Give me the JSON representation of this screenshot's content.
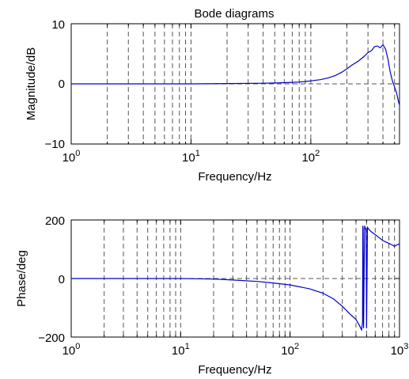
{
  "chart_data": [
    {
      "type": "line",
      "title": "Bode diagrams",
      "xlabel": "Frequency/Hz",
      "ylabel": "Magnitude/dB",
      "xscale": "log",
      "xlim": [
        1,
        550
      ],
      "ylim": [
        -10,
        10
      ],
      "xtick_labels": [
        {
          "base": "10",
          "exp": "0"
        },
        {
          "base": "10",
          "exp": "1"
        },
        {
          "base": "10",
          "exp": "2"
        }
      ],
      "ytick_labels": [
        "10",
        "0",
        "−10"
      ],
      "grid": "x-dashed",
      "zero_line": "dashed",
      "line_color": "#0000cc",
      "series": [
        {
          "x": [
            1,
            2,
            5,
            10,
            20,
            40,
            50,
            60,
            70,
            80,
            90,
            100,
            120,
            140,
            160,
            180,
            200,
            220,
            250,
            280,
            300,
            320,
            340,
            360,
            380,
            400,
            420,
            440,
            460,
            480,
            500,
            520,
            540,
            550
          ],
          "y": [
            0,
            0,
            0,
            0,
            0.05,
            0.1,
            0.15,
            0.2,
            0.25,
            0.3,
            0.4,
            0.5,
            0.7,
            1.0,
            1.4,
            1.9,
            2.5,
            3.1,
            3.8,
            4.6,
            5.2,
            5.5,
            6.2,
            6.3,
            6.0,
            6.5,
            5.8,
            4.2,
            2.0,
            0.5,
            -0.5,
            -1.5,
            -3.0,
            -3.5
          ]
        }
      ]
    },
    {
      "type": "line",
      "title": "",
      "xlabel": "Frequency/Hz",
      "ylabel": "Phase/deg",
      "xscale": "log",
      "xlim": [
        1,
        1000
      ],
      "ylim": [
        -200,
        200
      ],
      "xtick_labels": [
        {
          "base": "10",
          "exp": "0"
        },
        {
          "base": "10",
          "exp": "1"
        },
        {
          "base": "10",
          "exp": "2"
        },
        {
          "base": "10",
          "exp": "3"
        }
      ],
      "ytick_labels": [
        "200",
        "0",
        "−200"
      ],
      "grid": "x-dashed",
      "zero_line": "dashed",
      "line_color": "#0000cc",
      "series": [
        {
          "x": [
            1,
            5,
            10,
            20,
            30,
            50,
            70,
            100,
            150,
            200,
            250,
            300,
            350,
            400,
            430,
            450,
            460,
            462,
            465,
            470,
            480,
            490,
            495,
            500,
            510,
            520,
            550,
            600,
            650,
            700,
            750,
            800,
            850,
            900,
            950,
            1000
          ],
          "y": [
            0,
            0,
            0,
            -2,
            -5,
            -10,
            -15,
            -22,
            -35,
            -50,
            -70,
            -95,
            -120,
            -140,
            -160,
            -175,
            -150,
            180,
            170,
            -170,
            180,
            170,
            165,
            -170,
            175,
            170,
            160,
            150,
            140,
            130,
            125,
            120,
            115,
            110,
            115,
            118
          ]
        }
      ]
    }
  ]
}
